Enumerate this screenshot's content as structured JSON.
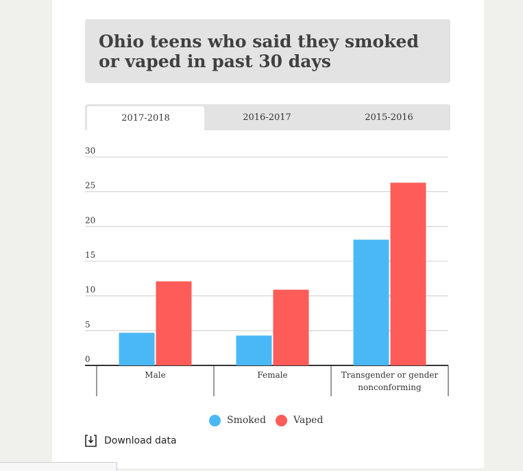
{
  "title": "Ohio teens who said they smoked or vaped in past 30 days",
  "tabs": [
    {
      "label": "2017-2018",
      "active": true
    },
    {
      "label": "2016-2017",
      "active": false
    },
    {
      "label": "2015-2016",
      "active": false
    }
  ],
  "legend": {
    "smoked_label": "Smoked",
    "vaped_label": "Vaped"
  },
  "download_label": "Download data",
  "colors": {
    "smoked": "#4ab8f5",
    "vaped": "#fd5c58",
    "grid": "#cccccc",
    "axis": "#333333"
  },
  "chart_data": {
    "type": "bar",
    "title": "Ohio teens who said they smoked or vaped in past 30 days",
    "categories": [
      [
        "Male"
      ],
      [
        "Female"
      ],
      [
        "Transgender or gender",
        "nonconforming"
      ]
    ],
    "series": [
      {
        "name": "Smoked",
        "values": [
          4.7,
          4.3,
          18.1
        ]
      },
      {
        "name": "Vaped",
        "values": [
          12.1,
          10.9,
          26.3
        ]
      }
    ],
    "yticks": [
      0,
      5,
      10,
      15,
      20,
      25,
      30
    ],
    "ylim": [
      0,
      30
    ],
    "grid": true,
    "legend_position": "bottom"
  }
}
